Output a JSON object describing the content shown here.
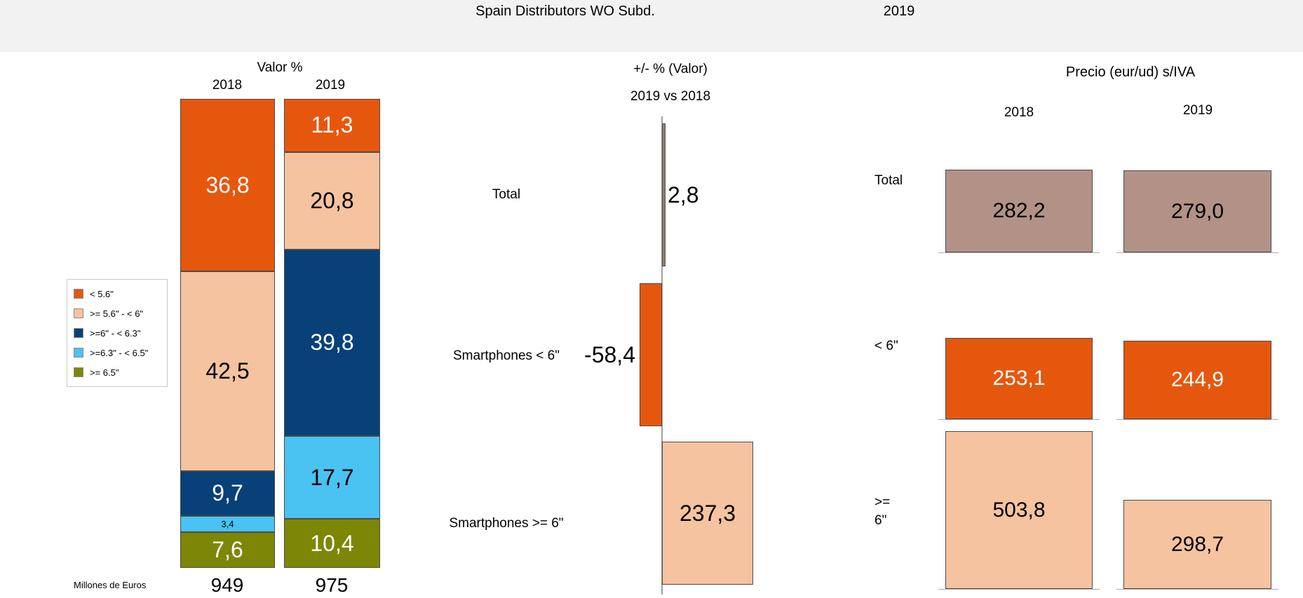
{
  "header": {
    "title": "Spain Distributors WO Subd.",
    "year": "2019"
  },
  "chart_data": [
    {
      "id": "valor",
      "type": "bar",
      "stacked": true,
      "title": "Valor %",
      "unit_note": "Millones de Euros",
      "categories": [
        "2018",
        "2019"
      ],
      "totals": [
        "949",
        "975"
      ],
      "ylim": [
        0,
        100
      ],
      "legend_position": "left",
      "series": [
        {
          "name": "< 5.6\"",
          "color": "#E6570E",
          "text_color": "#FFFFFF",
          "values": [
            36.8,
            11.3
          ]
        },
        {
          "name": ">= 5.6\" - < 6\"",
          "color": "#F6C3A0",
          "text_color": "#000000",
          "values": [
            42.5,
            20.8
          ]
        },
        {
          "name": ">=6\" - < 6.3\"",
          "color": "#084078",
          "text_color": "#FFFFFF",
          "values": [
            9.7,
            39.8
          ]
        },
        {
          "name": ">=6.3\" - < 6.5\"",
          "color": "#4AC2F2",
          "text_color": "#000000",
          "values": [
            3.4,
            17.7
          ]
        },
        {
          "name": ">= 6.5\"",
          "color": "#7E8606",
          "text_color": "#FFFFFF",
          "values": [
            7.6,
            10.4
          ]
        }
      ],
      "value_labels": [
        [
          "36,8",
          "42,5",
          "9,7",
          "3,4",
          "7,6"
        ],
        [
          "11,3",
          "20,8",
          "39,8",
          "17,7",
          "10,4"
        ]
      ]
    },
    {
      "id": "delta",
      "type": "bar",
      "orientation": "horizontal",
      "title": "+/- % (Valor)",
      "subtitle": "2019 vs 2018",
      "rows": [
        {
          "label": "Total",
          "value": 2.8,
          "value_label": "2,8",
          "color": "#8C8174",
          "border": "#55504B"
        },
        {
          "label": "Smartphones < 6\"",
          "value": -58.4,
          "value_label": "-58,4",
          "color": "#E6570E",
          "border": "#4A4A4A"
        },
        {
          "label": "Smartphones >= 6\"",
          "value": 237.3,
          "value_label": "237,3",
          "color": "#F6C3A0",
          "border": "#4A4A4A"
        }
      ]
    },
    {
      "id": "precio",
      "type": "bar",
      "title": "Precio (eur/ud) s/IVA",
      "categories": [
        "2018",
        "2019"
      ],
      "rows": [
        {
          "label": "Total",
          "color": "#B29287",
          "text_color": "#000000",
          "values": [
            282.2,
            279.0
          ],
          "value_labels": [
            "282,2",
            "279,0"
          ]
        },
        {
          "label": "< 6\"",
          "color": "#E6570E",
          "text_color": "#FFFFFF",
          "values": [
            253.1,
            244.9
          ],
          "value_labels": [
            "253,1",
            "244,9"
          ]
        },
        {
          "label": ">= 6\"",
          "color": "#F6C3A0",
          "text_color": "#000000",
          "values": [
            503.8,
            298.7
          ],
          "value_labels": [
            "503,8",
            "298,7"
          ]
        }
      ]
    }
  ]
}
